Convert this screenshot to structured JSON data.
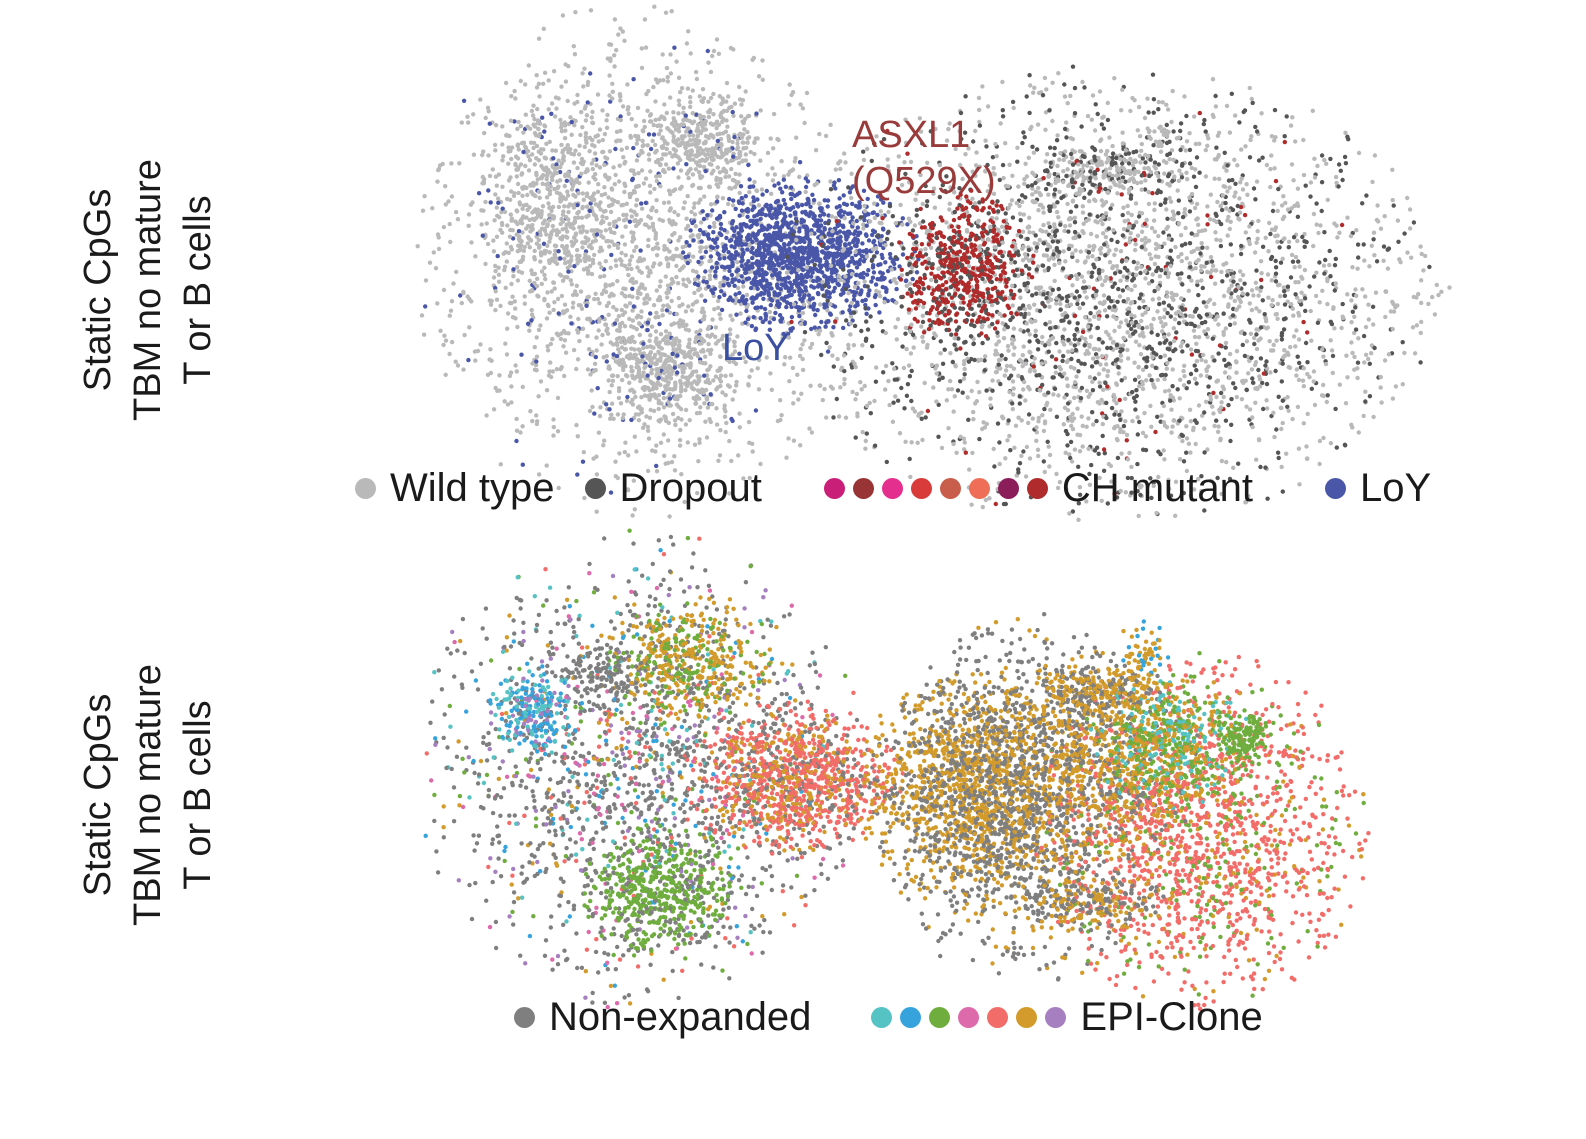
{
  "row_labels": [
    {
      "lines": [
        "Static CpGs",
        "TBM no mature",
        "T or B cells"
      ]
    },
    {
      "lines": [
        "Static CpGs",
        "TBM no mature",
        "T or B cells"
      ]
    }
  ],
  "chart_data": [
    {
      "type": "scatter",
      "row": "top",
      "panels": [
        "left",
        "right"
      ],
      "annotations": [
        {
          "text": "LoY",
          "color": "#3a4fa0",
          "panel": "left"
        },
        {
          "lines": [
            "ASXL1",
            "(Q529X)"
          ],
          "color": "#9a3b3b",
          "panel": "right"
        }
      ],
      "legend": [
        {
          "label": "Wild type",
          "colors": [
            "#b9b9b9"
          ]
        },
        {
          "label": "Dropout",
          "colors": [
            "#555555"
          ]
        },
        {
          "label": "CH mutant",
          "colors": [
            "#c91f78",
            "#983436",
            "#e52f8e",
            "#d93b3b",
            "#c95d4c",
            "#ef6e57",
            "#8b1d5a",
            "#b02b2b"
          ]
        },
        {
          "label": "LoY",
          "colors": [
            "#4a57a8"
          ]
        }
      ],
      "axes": "none"
    },
    {
      "type": "scatter",
      "row": "bottom",
      "panels": [
        "left",
        "right"
      ],
      "legend": [
        {
          "label": "Non-expanded",
          "colors": [
            "#7f7f7f"
          ]
        },
        {
          "label": "EPI-Clone",
          "colors": [
            "#55c2c4",
            "#36a3dd",
            "#6fae3e",
            "#dd6aaa",
            "#f26d69",
            "#d29b2b",
            "#a57fbf"
          ]
        }
      ],
      "axes": "none"
    }
  ]
}
